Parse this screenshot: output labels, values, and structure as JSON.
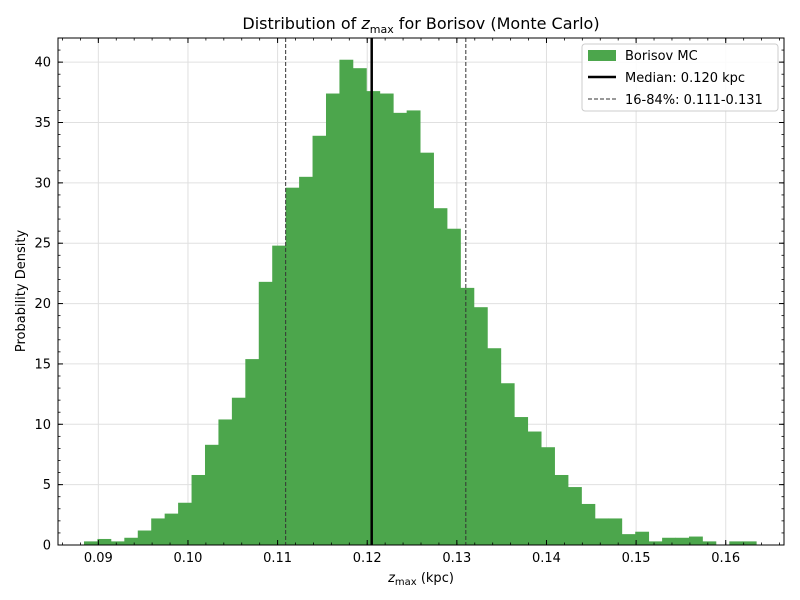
{
  "chart_data": {
    "type": "histogram",
    "title": {
      "prefix": "Distribution of ",
      "symbol": "z",
      "subscript": "max",
      "suffix": " for Borisov (Monte Carlo)"
    },
    "xlabel": {
      "symbol": "z",
      "subscript": "max",
      "suffix": " (kpc)"
    },
    "ylabel": "Probability Density",
    "xlim": [
      0.0855,
      0.1665
    ],
    "ylim": [
      0,
      42
    ],
    "x_ticks": [
      {
        "value": 0.09,
        "label": "0.09"
      },
      {
        "value": 0.1,
        "label": "0.10"
      },
      {
        "value": 0.11,
        "label": "0.11"
      },
      {
        "value": 0.12,
        "label": "0.12"
      },
      {
        "value": 0.13,
        "label": "0.13"
      },
      {
        "value": 0.14,
        "label": "0.14"
      },
      {
        "value": 0.15,
        "label": "0.15"
      },
      {
        "value": 0.16,
        "label": "0.16"
      }
    ],
    "y_ticks": [
      {
        "value": 0,
        "label": "0"
      },
      {
        "value": 5,
        "label": "5"
      },
      {
        "value": 10,
        "label": "10"
      },
      {
        "value": 15,
        "label": "15"
      },
      {
        "value": 20,
        "label": "20"
      },
      {
        "value": 25,
        "label": "25"
      },
      {
        "value": 30,
        "label": "30"
      },
      {
        "value": 35,
        "label": "35"
      },
      {
        "value": 40,
        "label": "40"
      }
    ],
    "grid": true,
    "legend_position": "upper right",
    "bin_start": 0.0884,
    "bin_width": 0.0015,
    "values": [
      0.3,
      0.5,
      0.3,
      0.6,
      1.2,
      2.2,
      2.6,
      3.5,
      5.8,
      8.3,
      10.4,
      12.2,
      15.4,
      21.8,
      24.8,
      29.6,
      30.5,
      33.9,
      37.4,
      40.2,
      39.5,
      37.6,
      37.4,
      35.8,
      36.0,
      32.5,
      27.9,
      26.2,
      21.3,
      19.7,
      16.3,
      13.4,
      10.6,
      9.4,
      8.1,
      5.8,
      4.8,
      3.4,
      2.2,
      2.2,
      0.9,
      1.1,
      0.3,
      0.6,
      0.6,
      0.7,
      0.3,
      0.0,
      0.3,
      0.3
    ],
    "series": [
      {
        "name": "Borisov MC",
        "kind": "histogram",
        "color": "#4ca64c"
      }
    ],
    "median": {
      "value": 0.1205,
      "label": "Median: 0.120 kpc",
      "color": "#000000"
    },
    "percentiles": {
      "low": 0.1109,
      "high": 0.131,
      "label": "16-84%: 0.111-0.131",
      "color": "#333333"
    }
  }
}
